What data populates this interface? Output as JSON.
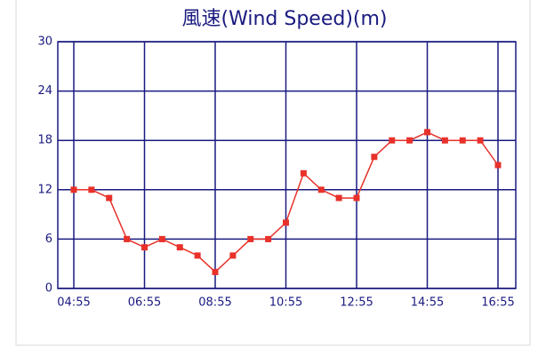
{
  "chart_data": {
    "type": "line",
    "title": "風速(Wind Speed)(m)",
    "categories": [
      "04:55",
      null,
      null,
      null,
      "06:55",
      null,
      null,
      null,
      "08:55",
      null,
      null,
      null,
      "10:55",
      null,
      null,
      null,
      "12:55",
      null,
      null,
      null,
      "14:55",
      null,
      null,
      null,
      "16:55"
    ],
    "series": [
      {
        "color": "#e8312a",
        "values": [
          12,
          12,
          11,
          6,
          5,
          6,
          5,
          4,
          2,
          4,
          6,
          6,
          8,
          14,
          12,
          11,
          11,
          16,
          18,
          18,
          19,
          18,
          18,
          18,
          15
        ]
      }
    ],
    "ylim": [
      0,
      30
    ],
    "yticks": [
      0,
      6,
      12,
      18,
      24,
      30
    ],
    "grid": true
  }
}
